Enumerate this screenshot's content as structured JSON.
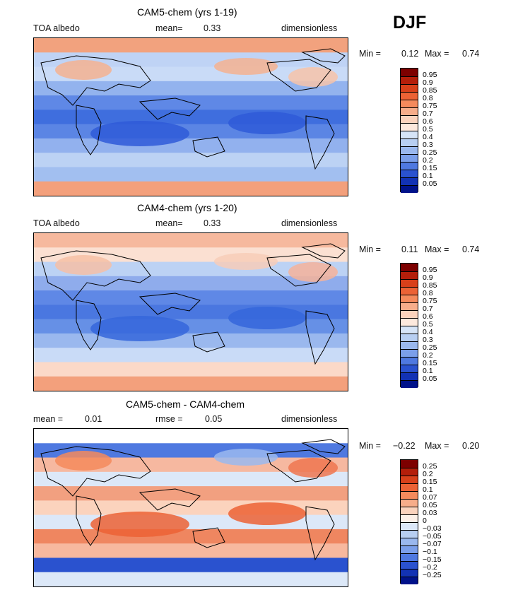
{
  "season": "DJF",
  "panels": [
    {
      "title": "CAM5-chem (yrs 1-19)",
      "left_text": "TOA albedo",
      "mean_label": "mean=",
      "mean_value": "0.33",
      "units": "dimensionless",
      "min_label": "Min =",
      "min_value": "0.12",
      "max_label": "Max =",
      "max_value": "0.74",
      "colorbar": {
        "labels": [
          "0.95",
          "0.9",
          "0.85",
          "0.8",
          "0.75",
          "0.7",
          "0.6",
          "0.5",
          "0.4",
          "0.3",
          "0.25",
          "0.2",
          "0.15",
          "0.1",
          "0.05"
        ],
        "colors": [
          "#7d0000",
          "#b41e0a",
          "#d8401a",
          "#ec6235",
          "#f58a5c",
          "#f7ad8a",
          "#fbd3bd",
          "#fde9dd",
          "#d6e4f7",
          "#b8cff2",
          "#9ab8ee",
          "#7b9fea",
          "#4f79e0",
          "#2a52cf",
          "#1232b4",
          "#00128a"
        ]
      },
      "field": {
        "bands": [
          "#f2a27e",
          "#bfd3f5",
          "#c9dbf7",
          "#93b3ee",
          "#5f88e6",
          "#3f6ede",
          "#5b85e4",
          "#92b1ee",
          "#bcd2f4",
          "#a2bff0",
          "#f3a07c"
        ],
        "blobs": [
          {
            "color": "#2f5bd8"
          },
          {
            "color": "#2f5bd8"
          },
          {
            "color": "#f4b290"
          },
          {
            "color": "#f4b290"
          },
          {
            "color": "#f7c3a9"
          }
        ]
      }
    },
    {
      "title": "CAM4-chem (yrs 1-20)",
      "left_text": "TOA albedo",
      "mean_label": "mean=",
      "mean_value": "0.33",
      "units": "dimensionless",
      "min_label": "Min =",
      "min_value": "0.11",
      "max_label": "Max =",
      "max_value": "0.74",
      "colorbar": {
        "labels": [
          "0.95",
          "0.9",
          "0.85",
          "0.8",
          "0.75",
          "0.7",
          "0.6",
          "0.5",
          "0.4",
          "0.3",
          "0.25",
          "0.2",
          "0.15",
          "0.1",
          "0.05"
        ],
        "colors": [
          "#7d0000",
          "#b41e0a",
          "#d8401a",
          "#ec6235",
          "#f58a5c",
          "#f7ad8a",
          "#fbd3bd",
          "#fde9dd",
          "#d6e4f7",
          "#b8cff2",
          "#9ab8ee",
          "#7b9fea",
          "#4f79e0",
          "#2a52cf",
          "#1232b4",
          "#00128a"
        ]
      },
      "field": {
        "bands": [
          "#f6b99e",
          "#fbe0d2",
          "#bcd2f4",
          "#8facec",
          "#5f88e6",
          "#4a77e0",
          "#6690e6",
          "#9ab8ee",
          "#c9dbf7",
          "#fbd9c8",
          "#f3a07c"
        ],
        "blobs": [
          {
            "color": "#3566da"
          },
          {
            "color": "#3566da"
          },
          {
            "color": "#f6c0a6"
          },
          {
            "color": "#f7cdb8"
          },
          {
            "color": "#f6b39a"
          }
        ]
      }
    },
    {
      "title": "CAM5-chem - CAM4-chem",
      "left_text": "mean =",
      "mean_label": "",
      "mean_value": "0.01",
      "rmse_label": "rmse =",
      "rmse_value": "0.05",
      "units": "dimensionless",
      "min_label": "Min =",
      "min_value": "−0.22",
      "max_label": "Max =",
      "max_value": "0.20",
      "colorbar": {
        "labels": [
          "0.25",
          "0.2",
          "0.15",
          "0.1",
          "0.07",
          "0.05",
          "0.03",
          "0",
          "−0.03",
          "−0.05",
          "−0.07",
          "−0.1",
          "−0.15",
          "−0.2",
          "−0.25"
        ],
        "colors": [
          "#7d0000",
          "#b41e0a",
          "#d8401a",
          "#ec6235",
          "#f58a5c",
          "#f7ad8a",
          "#fbd3bd",
          "#fdf0e8",
          "#dce8f8",
          "#b8cff2",
          "#9ab8ee",
          "#7b9fea",
          "#4f79e0",
          "#2a52cf",
          "#1232b4",
          "#00128a"
        ]
      },
      "field": {
        "bands": [
          "#ffffff",
          "#4f79e0",
          "#f6b8a0",
          "#dce8f8",
          "#f2a080",
          "#fbd3bd",
          "#dce8f8",
          "#ef8660",
          "#f7b89e",
          "#2a52cf",
          "#dce8f8"
        ],
        "blobs": [
          {
            "color": "#ec6235"
          },
          {
            "color": "#ec6235"
          },
          {
            "color": "#f58a5c"
          },
          {
            "color": "#9ab8ee"
          },
          {
            "color": "#ee7550"
          }
        ]
      }
    }
  ]
}
